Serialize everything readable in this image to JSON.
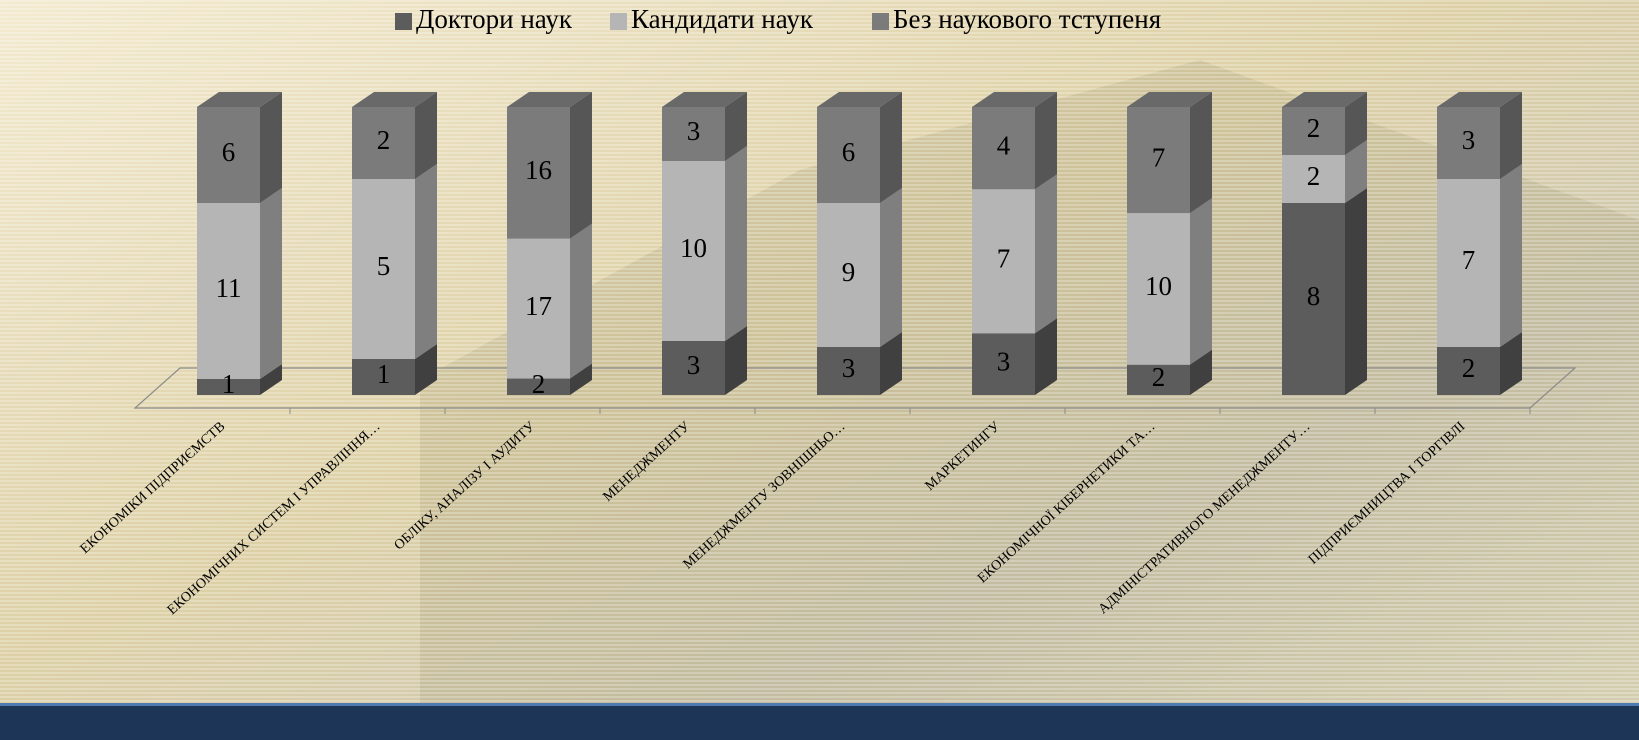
{
  "chart_data": {
    "type": "bar",
    "stacking": "percent",
    "categories": [
      "ЕКОНОМІКИ ПІДПРИЄМСТВ",
      "ЕКОНОМІЧНИХ СИСТЕМ І УПРАВЛІННЯ…",
      "ОБЛІКУ, АНАЛІЗУ І АУДИТУ",
      "МЕНЕДЖМЕНТУ",
      "МЕНЕДЖМЕНТУ ЗОВНІШНЬО…",
      "МАРКЕТИНГУ",
      "ЕКОНОМІЧНОЇ КІБЕРНЕТИКИ ТА…",
      "АДМІНІСТРАТИВНОГО МЕНЕДЖМЕНТУ…",
      "ПІДПРИЄМНИЦТВА І ТОРГІВЛІ"
    ],
    "series": [
      {
        "name": "Доктори наук",
        "color": "#5c5c5c",
        "values": [
          1,
          1,
          2,
          3,
          3,
          3,
          2,
          8,
          2
        ]
      },
      {
        "name": "Кандидати наук",
        "color": "#b5b5b5",
        "values": [
          11,
          5,
          17,
          10,
          9,
          7,
          10,
          2,
          7
        ]
      },
      {
        "name": "Без наукового тступеня",
        "color": "#7b7b7b",
        "values": [
          6,
          2,
          16,
          3,
          6,
          4,
          7,
          2,
          3
        ]
      }
    ],
    "legend": "top"
  }
}
